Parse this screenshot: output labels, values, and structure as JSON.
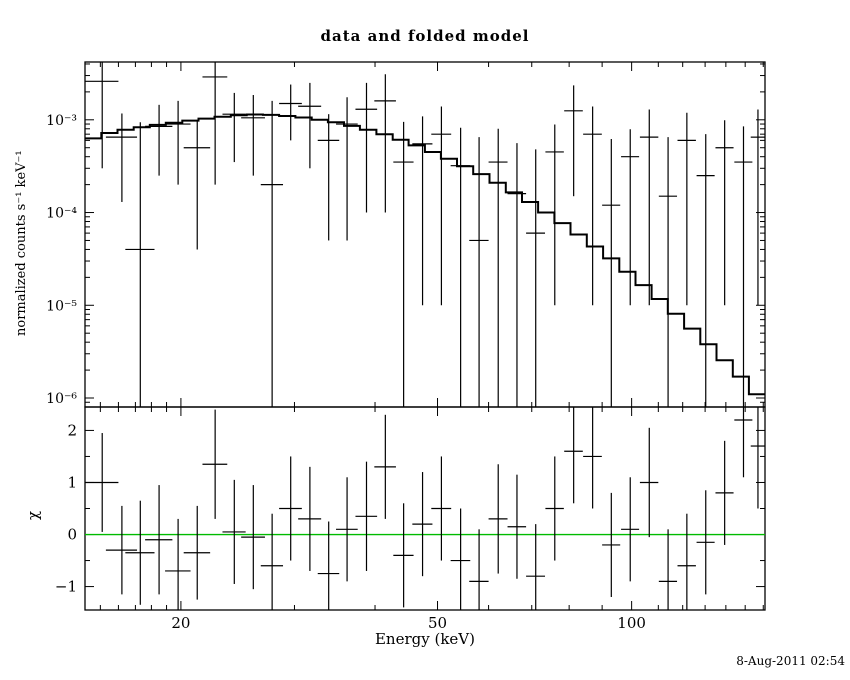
{
  "timestamp": "8-Aug-2011 02:54",
  "chart_data": {
    "type": "line",
    "title": "data and folded model",
    "xlabel": "Energy (keV)",
    "x_scale": "log",
    "xlim": [
      14.2,
      161
    ],
    "x_ticks": [
      {
        "v": 20,
        "label": "20"
      },
      {
        "v": 50,
        "label": "50"
      },
      {
        "v": 100,
        "label": "100"
      }
    ],
    "x_minor_ticks": [
      15,
      16,
      17,
      18,
      19,
      30,
      40,
      60,
      70,
      80,
      90,
      110,
      120,
      130,
      140,
      150,
      160
    ],
    "top_panel": {
      "ylabel": "normalized counts s⁻¹ keV⁻¹",
      "y_scale": "log",
      "ylim": [
        8e-07,
        0.0042
      ],
      "y_ticks": [
        {
          "v": 0.001,
          "label": "10⁻³"
        },
        {
          "v": 0.0001,
          "label": "10⁻⁴"
        },
        {
          "v": 1e-05,
          "label": "10⁻⁵"
        },
        {
          "v": 1e-06,
          "label": "10⁻⁶"
        }
      ],
      "model": {
        "edges": [
          14.2,
          15.05,
          15.95,
          16.9,
          17.9,
          18.95,
          20.1,
          21.3,
          22.55,
          23.9,
          25.3,
          26.8,
          28.4,
          30.1,
          31.9,
          33.8,
          35.8,
          37.9,
          40.2,
          42.6,
          45.1,
          47.8,
          50.6,
          53.6,
          56.8,
          60.2,
          63.8,
          67.6,
          71.6,
          75.9,
          80.4,
          85.2,
          90.3,
          95.7,
          101.4,
          107.4,
          113.8,
          120.6,
          127.8,
          135.4,
          143.5,
          152.0,
          161.0
        ],
        "values": [
          0.00063,
          0.00072,
          0.00078,
          0.00083,
          0.00088,
          0.00093,
          0.00098,
          0.00103,
          0.00108,
          0.00112,
          0.00114,
          0.00113,
          0.0011,
          0.00106,
          0.001,
          0.00094,
          0.00086,
          0.00078,
          0.0007,
          0.00061,
          0.00053,
          0.00045,
          0.00038,
          0.000315,
          0.00026,
          0.00021,
          0.000165,
          0.00013,
          0.0001,
          7.7e-05,
          5.8e-05,
          4.3e-05,
          3.2e-05,
          2.3e-05,
          1.65e-05,
          1.17e-05,
          8.1e-06,
          5.6e-06,
          3.8e-06,
          2.55e-06,
          1.7e-06,
          1.1e-06
        ]
      },
      "data_columns": [
        "energy_keV",
        "half_width_keV",
        "value",
        "error"
      ],
      "data": [
        [
          15.1,
          0.9,
          0.0026,
          0.0023
        ],
        [
          16.2,
          0.9,
          0.00065,
          0.00052
        ],
        [
          17.3,
          0.9,
          4e-05,
          0.0009
        ],
        [
          18.5,
          0.9,
          0.00085,
          0.0006
        ],
        [
          19.8,
          0.9,
          0.0009,
          0.0007
        ],
        [
          21.2,
          1.0,
          0.0005,
          0.00046
        ],
        [
          22.6,
          1.0,
          0.0029,
          0.0027
        ],
        [
          24.2,
          1.0,
          0.00115,
          0.0008
        ],
        [
          25.9,
          1.1,
          0.00105,
          0.0008
        ],
        [
          27.7,
          1.1,
          0.0002,
          0.0014
        ],
        [
          29.6,
          1.2,
          0.0015,
          0.0009
        ],
        [
          31.7,
          1.3,
          0.0014,
          0.0011
        ],
        [
          33.9,
          1.3,
          0.0006,
          0.00055
        ],
        [
          36.2,
          1.4,
          0.0009,
          0.00085
        ],
        [
          38.8,
          1.5,
          0.0013,
          0.0012
        ],
        [
          41.5,
          1.6,
          0.0016,
          0.0015
        ],
        [
          44.3,
          1.6,
          0.00035,
          0.0006
        ],
        [
          47.4,
          1.7,
          0.00055,
          0.00054
        ],
        [
          50.7,
          1.8,
          0.0007,
          0.00069
        ],
        [
          54.3,
          1.9,
          0.00032,
          0.0005
        ],
        [
          58.0,
          2.0,
          5e-05,
          0.0006
        ],
        [
          62.1,
          2.1,
          0.00035,
          0.00045
        ],
        [
          66.4,
          2.2,
          0.00016,
          0.0004
        ],
        [
          71.0,
          2.4,
          6e-05,
          0.00042
        ],
        [
          76.0,
          2.5,
          0.00045,
          0.00044
        ],
        [
          81.3,
          2.7,
          0.00125,
          0.0011
        ],
        [
          87.0,
          2.9,
          0.0007,
          0.00069
        ],
        [
          93.0,
          3.0,
          0.00012,
          0.0005
        ],
        [
          99.5,
          3.2,
          0.0004,
          0.00039
        ],
        [
          106.5,
          3.5,
          0.00065,
          0.00064
        ],
        [
          113.9,
          3.7,
          0.00015,
          0.0005
        ],
        [
          121.8,
          4.0,
          0.0006,
          0.00059
        ],
        [
          130.3,
          4.2,
          0.00025,
          0.00045
        ],
        [
          139.4,
          4.5,
          0.0005,
          0.00049
        ],
        [
          149.1,
          4.8,
          0.00035,
          0.0005
        ],
        [
          157.0,
          4.0,
          0.00065,
          0.00064
        ]
      ]
    },
    "bottom_panel": {
      "ylabel": "χ",
      "y_scale": "linear",
      "ylim": [
        -1.45,
        2.45
      ],
      "y_ticks": [
        {
          "v": 2,
          "label": "2"
        },
        {
          "v": 1,
          "label": "1"
        },
        {
          "v": 0,
          "label": "0"
        },
        {
          "v": -1,
          "label": "−1"
        }
      ],
      "y_minor_ticks": [
        -0.5,
        0.5,
        1.5
      ],
      "zero_line_color": "#00bb00",
      "data_columns": [
        "energy_keV",
        "half_width_keV",
        "chi",
        "error"
      ],
      "data": [
        [
          15.1,
          0.9,
          1.0,
          0.95
        ],
        [
          16.2,
          0.9,
          -0.3,
          0.85
        ],
        [
          17.3,
          0.9,
          -0.35,
          1.0
        ],
        [
          18.5,
          0.9,
          -0.1,
          1.05
        ],
        [
          19.8,
          0.9,
          -0.7,
          1.0
        ],
        [
          21.2,
          1.0,
          -0.35,
          0.9
        ],
        [
          22.6,
          1.0,
          1.35,
          1.05
        ],
        [
          24.2,
          1.0,
          0.05,
          1.0
        ],
        [
          25.9,
          1.1,
          -0.05,
          1.0
        ],
        [
          27.7,
          1.1,
          -0.6,
          1.0
        ],
        [
          29.6,
          1.2,
          0.5,
          1.0
        ],
        [
          31.7,
          1.3,
          0.3,
          1.0
        ],
        [
          33.9,
          1.3,
          -0.75,
          1.0
        ],
        [
          36.2,
          1.4,
          0.1,
          1.0
        ],
        [
          38.8,
          1.5,
          0.35,
          1.05
        ],
        [
          41.5,
          1.6,
          1.3,
          1.0
        ],
        [
          44.3,
          1.6,
          -0.4,
          1.0
        ],
        [
          47.4,
          1.7,
          0.2,
          1.0
        ],
        [
          50.7,
          1.8,
          0.5,
          1.0
        ],
        [
          54.3,
          1.9,
          -0.5,
          1.0
        ],
        [
          58.0,
          2.0,
          -0.9,
          1.0
        ],
        [
          62.1,
          2.1,
          0.3,
          1.05
        ],
        [
          66.4,
          2.2,
          0.15,
          1.0
        ],
        [
          71.0,
          2.4,
          -0.8,
          1.0
        ],
        [
          76.0,
          2.5,
          0.5,
          1.0
        ],
        [
          81.3,
          2.7,
          1.6,
          1.0
        ],
        [
          87.0,
          2.9,
          1.5,
          1.0
        ],
        [
          93.0,
          3.0,
          -0.2,
          1.0
        ],
        [
          99.5,
          3.2,
          0.1,
          1.0
        ],
        [
          106.5,
          3.5,
          1.0,
          1.05
        ],
        [
          113.9,
          3.7,
          -0.9,
          1.0
        ],
        [
          121.8,
          4.0,
          -0.6,
          1.0
        ],
        [
          130.3,
          4.2,
          -0.15,
          1.0
        ],
        [
          139.4,
          4.5,
          0.8,
          1.0
        ],
        [
          149.1,
          4.8,
          2.2,
          1.1
        ],
        [
          157.0,
          4.0,
          1.7,
          1.2
        ]
      ]
    }
  }
}
